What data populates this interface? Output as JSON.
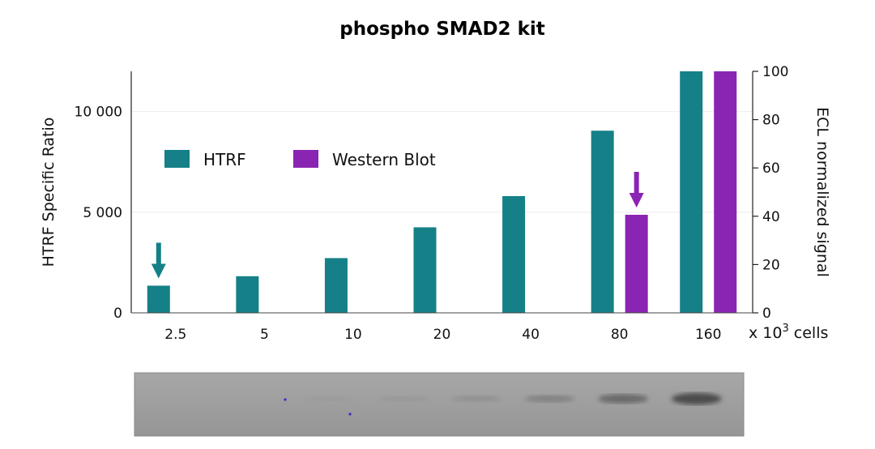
{
  "chart_data": {
    "type": "bar",
    "title": "phospho SMAD2 kit",
    "xlabel": "x 10",
    "xlabel_superscript": "3",
    "xlabel_suffix": " cells",
    "categories": [
      "2.5",
      "5",
      "10",
      "20",
      "40",
      "80",
      "160"
    ],
    "y_left": {
      "label": "HTRF Specific Ratio",
      "range": [
        0,
        12000
      ],
      "ticks": [
        0,
        5000,
        10000
      ],
      "tick_labels": [
        "0",
        "5 000",
        "10 000"
      ]
    },
    "y_right": {
      "label": "ECL normalized signal",
      "range": [
        0,
        100
      ],
      "ticks": [
        0,
        20,
        40,
        60,
        80,
        100
      ],
      "tick_labels": [
        "0",
        "20",
        "40",
        "60",
        "80",
        "100"
      ]
    },
    "series": [
      {
        "name": "HTRF",
        "axis": "left",
        "color": "#158087",
        "values": [
          1350,
          1820,
          2720,
          4250,
          5800,
          9050,
          12000
        ]
      },
      {
        "name": "Western Blot",
        "axis": "right",
        "color": "#8a24b2",
        "values": [
          null,
          null,
          null,
          null,
          null,
          40.6,
          100
        ]
      }
    ],
    "arrows": [
      {
        "category": "2.5",
        "series": "HTRF",
        "color": "#158087"
      },
      {
        "category": "80",
        "series": "Western Blot",
        "color": "#8a24b2"
      }
    ],
    "legend": {
      "placement": "upper-left",
      "entries": [
        "HTRF",
        "Western Blot"
      ]
    },
    "grid": "horizontal",
    "blot": {
      "background": "#9a9a9a",
      "band_intensity": [
        0.0,
        0.0,
        0.04,
        0.08,
        0.15,
        0.3,
        0.55,
        0.85
      ]
    }
  }
}
